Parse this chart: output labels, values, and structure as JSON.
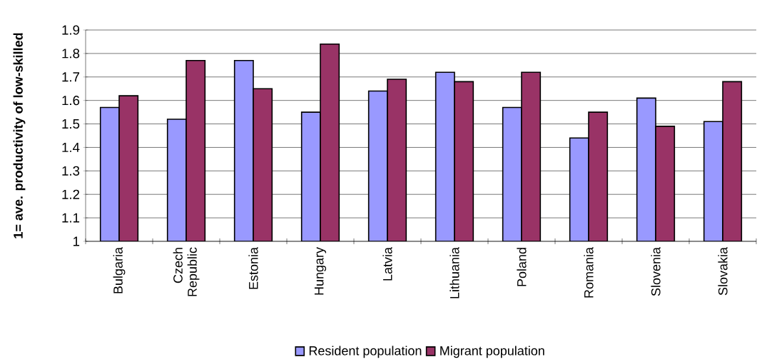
{
  "chart_data": {
    "type": "bar",
    "ylabel": "1= ave. productivity of low-skilled",
    "categories": [
      "Bulgaria",
      "Czech Republic",
      "Estonia",
      "Hungary",
      "Latvia",
      "Lithuania",
      "Poland",
      "Romania",
      "Slovenia",
      "Slovakia"
    ],
    "series": [
      {
        "name": "Resident population",
        "color": "#9999ff",
        "values": [
          1.57,
          1.52,
          1.77,
          1.55,
          1.64,
          1.72,
          1.57,
          1.44,
          1.61,
          1.51
        ]
      },
      {
        "name": "Migrant population",
        "color": "#993366",
        "values": [
          1.62,
          1.77,
          1.65,
          1.84,
          1.69,
          1.68,
          1.72,
          1.55,
          1.49,
          1.68
        ]
      }
    ],
    "ylim": [
      1,
      1.9
    ],
    "yticks": [
      1,
      1.1,
      1.2,
      1.3,
      1.4,
      1.5,
      1.6,
      1.7,
      1.8,
      1.9
    ],
    "grid": "y",
    "legend": "bottom"
  }
}
